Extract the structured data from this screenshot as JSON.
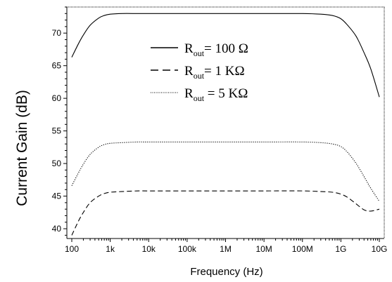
{
  "chart_data": {
    "type": "line",
    "xlabel": "Frequency (Hz)",
    "ylabel": "Current Gain (dB)",
    "x_scale": "log",
    "xlim": [
      100,
      10000000000
    ],
    "ylim": [
      38.5,
      74
    ],
    "x_ticks": [
      {
        "value": 100,
        "label": "100"
      },
      {
        "value": 1000,
        "label": "1k"
      },
      {
        "value": 10000,
        "label": "10k"
      },
      {
        "value": 100000,
        "label": "100k"
      },
      {
        "value": 1000000,
        "label": "1M"
      },
      {
        "value": 10000000,
        "label": "10M"
      },
      {
        "value": 100000000,
        "label": "100M"
      },
      {
        "value": 1000000000,
        "label": "1G"
      },
      {
        "value": 10000000000,
        "label": "10G"
      }
    ],
    "y_ticks": [
      {
        "value": 40,
        "label": "40"
      },
      {
        "value": 45,
        "label": "45"
      },
      {
        "value": 50,
        "label": "50"
      },
      {
        "value": 55,
        "label": "55"
      },
      {
        "value": 60,
        "label": "60"
      },
      {
        "value": 65,
        "label": "65"
      },
      {
        "value": 70,
        "label": "70"
      }
    ],
    "legend_placement": "top-center",
    "series": [
      {
        "name_main": "R",
        "name_sub": "out",
        "name_rest": "= 100 Ω",
        "style": "solid",
        "x": [
          100,
          150,
          200,
          300,
          500,
          700,
          1000,
          2000,
          5000,
          10000,
          100000,
          1000000,
          10000000,
          100000000,
          300000000,
          600000000,
          1000000000,
          1500000000,
          2500000000,
          4000000000,
          6000000000,
          10000000000
        ],
        "y": [
          66.3,
          68.4,
          69.7,
          71.2,
          72.3,
          72.7,
          72.9,
          73.0,
          73.0,
          73.0,
          73.0,
          73.0,
          73.0,
          73.0,
          72.9,
          72.7,
          72.2,
          71.2,
          69.5,
          67.0,
          64.5,
          60.2
        ]
      },
      {
        "name_main": "R",
        "name_sub": "out",
        "name_rest": "= 1 KΩ",
        "style": "dashed",
        "x": [
          100,
          150,
          200,
          300,
          500,
          700,
          1000,
          2000,
          5000,
          10000,
          100000,
          1000000,
          10000000,
          100000000,
          300000000,
          600000000,
          1000000000,
          1500000000,
          2500000000,
          4000000000,
          6000000000,
          10000000000
        ],
        "y": [
          39.0,
          41.2,
          42.5,
          44.0,
          45.0,
          45.4,
          45.6,
          45.7,
          45.8,
          45.8,
          45.8,
          45.8,
          45.8,
          45.8,
          45.7,
          45.6,
          45.3,
          44.8,
          43.8,
          42.9,
          42.7,
          43.0
        ]
      },
      {
        "name_main": "R",
        "name_sub": "out",
        "name_rest": " = 5 KΩ",
        "style": "dotted",
        "x": [
          100,
          150,
          200,
          300,
          500,
          700,
          1000,
          2000,
          5000,
          10000,
          100000,
          1000000,
          10000000,
          100000000,
          300000000,
          600000000,
          1000000000,
          1500000000,
          2500000000,
          4000000000,
          6000000000,
          10000000000
        ],
        "y": [
          46.6,
          48.6,
          49.9,
          51.4,
          52.5,
          52.9,
          53.1,
          53.2,
          53.3,
          53.3,
          53.3,
          53.3,
          53.3,
          53.3,
          53.2,
          53.0,
          52.6,
          51.7,
          50.0,
          48.0,
          46.2,
          44.2
        ]
      }
    ]
  },
  "colors": {
    "line": "#000000",
    "background": "#ffffff"
  }
}
